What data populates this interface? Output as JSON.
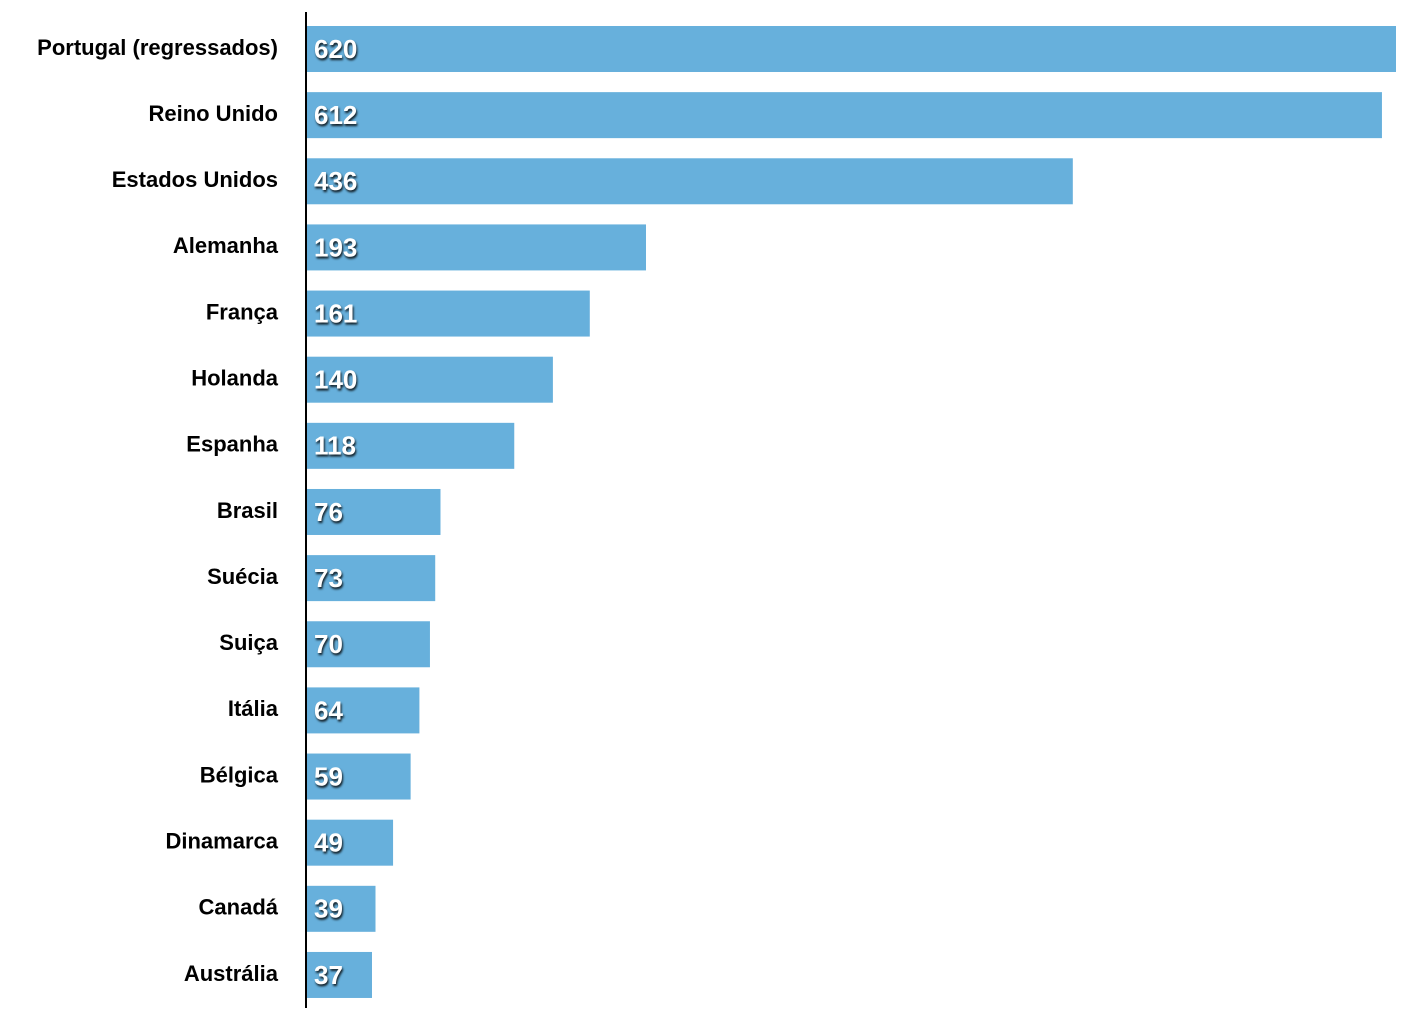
{
  "chart_data": {
    "type": "bar",
    "orientation": "horizontal",
    "color": "#67b0dc",
    "categories": [
      "Portugal (regressados)",
      "Reino Unido",
      "Estados Unidos",
      "Alemanha",
      "França",
      "Holanda",
      "Espanha",
      "Brasil",
      "Suécia",
      "Suiça",
      "Itália",
      "Bélgica",
      "Dinamarca",
      "Canadá",
      "Austrália"
    ],
    "values": [
      620,
      612,
      436,
      193,
      161,
      140,
      118,
      76,
      73,
      70,
      64,
      59,
      49,
      39,
      37
    ]
  }
}
